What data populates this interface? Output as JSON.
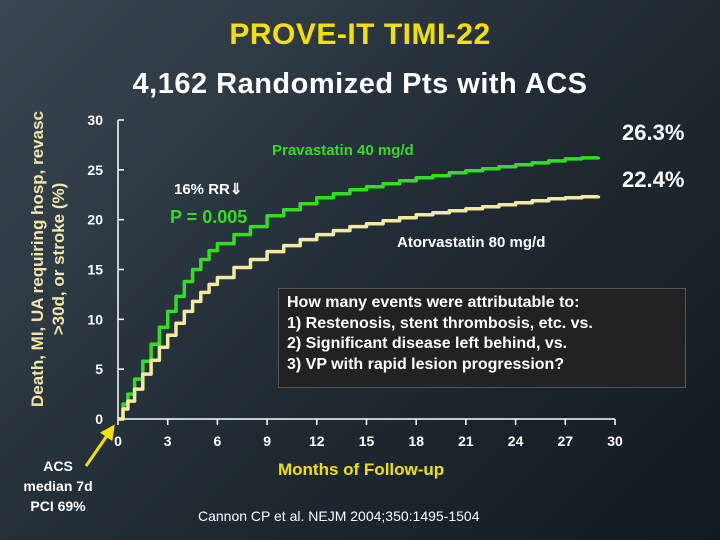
{
  "title": "PROVE-IT TIMI-22",
  "subtitle": "4,162 Randomized Pts with ACS",
  "y_axis_label": "Death, MI, UA requiring hosp, revasc >30d, or stroke (%)",
  "x_axis_label": "Months of Follow-up",
  "end_labels": [
    "26.3%",
    "22.4%"
  ],
  "annotations": {
    "pravastatin": "Pravastatin 40 mg/d",
    "atorvastatin": "Atorvastatin 80 mg/d",
    "rr": "16% RR⇓",
    "p_value": "P = 0.005"
  },
  "question_box": [
    "How many events were attributable to:",
    "1) Restenosis, stent thrombosis, etc. vs.",
    "2) Significant disease left behind, vs.",
    "3) VP with rapid lesion progression?"
  ],
  "acs_note": [
    "ACS",
    "median 7d",
    "PCI 69%"
  ],
  "citation": "Cannon CP et al. NEJM 2004;350:1495-1504",
  "colors": {
    "pravastatin": "#33dd22",
    "atorvastatin": "#f2eaa0",
    "title": "#f5e100",
    "p_value": "#33dd22"
  },
  "chart_data": {
    "type": "line",
    "xlabel": "Months of Follow-up",
    "ylabel": "Death, MI, UA requiring hosp, revasc >30d, or stroke (%)",
    "xlim": [
      0,
      30
    ],
    "ylim": [
      0,
      30
    ],
    "x_ticks": [
      0,
      3,
      6,
      9,
      12,
      15,
      18,
      21,
      24,
      27,
      30
    ],
    "y_ticks": [
      0,
      5,
      10,
      15,
      20,
      25,
      30
    ],
    "grid": false,
    "series": [
      {
        "name": "Pravastatin 40 mg/d",
        "x": [
          0,
          0.3,
          0.6,
          1,
          1.5,
          2,
          2.5,
          3,
          3.5,
          4,
          4.5,
          5,
          5.5,
          6,
          7,
          8,
          9,
          10,
          11,
          12,
          13,
          14,
          15,
          16,
          17,
          18,
          19,
          20,
          21,
          22,
          23,
          24,
          25,
          26,
          27,
          28,
          29
        ],
        "y": [
          0,
          1.5,
          2.5,
          4.0,
          5.8,
          7.5,
          9.2,
          10.8,
          12.3,
          13.8,
          15.0,
          16.0,
          16.9,
          17.6,
          18.5,
          19.3,
          20.4,
          21.0,
          21.6,
          22.2,
          22.6,
          23.0,
          23.3,
          23.6,
          23.9,
          24.2,
          24.4,
          24.7,
          24.9,
          25.1,
          25.3,
          25.5,
          25.7,
          25.9,
          26.1,
          26.2,
          26.3
        ]
      },
      {
        "name": "Atorvastatin 80 mg/d",
        "x": [
          0,
          0.3,
          0.6,
          1,
          1.5,
          2,
          2.5,
          3,
          3.5,
          4,
          4.5,
          5,
          5.5,
          6,
          7,
          8,
          9,
          10,
          11,
          12,
          13,
          14,
          15,
          16,
          17,
          18,
          19,
          20,
          21,
          22,
          23,
          24,
          25,
          26,
          27,
          28,
          29
        ],
        "y": [
          0,
          1.0,
          1.8,
          3.0,
          4.5,
          5.9,
          7.2,
          8.4,
          9.6,
          10.8,
          11.8,
          12.7,
          13.5,
          14.2,
          15.2,
          16.0,
          16.8,
          17.4,
          18.0,
          18.5,
          18.9,
          19.3,
          19.6,
          19.9,
          20.2,
          20.5,
          20.7,
          20.9,
          21.1,
          21.3,
          21.5,
          21.7,
          21.9,
          22.1,
          22.2,
          22.3,
          22.4
        ]
      }
    ]
  }
}
